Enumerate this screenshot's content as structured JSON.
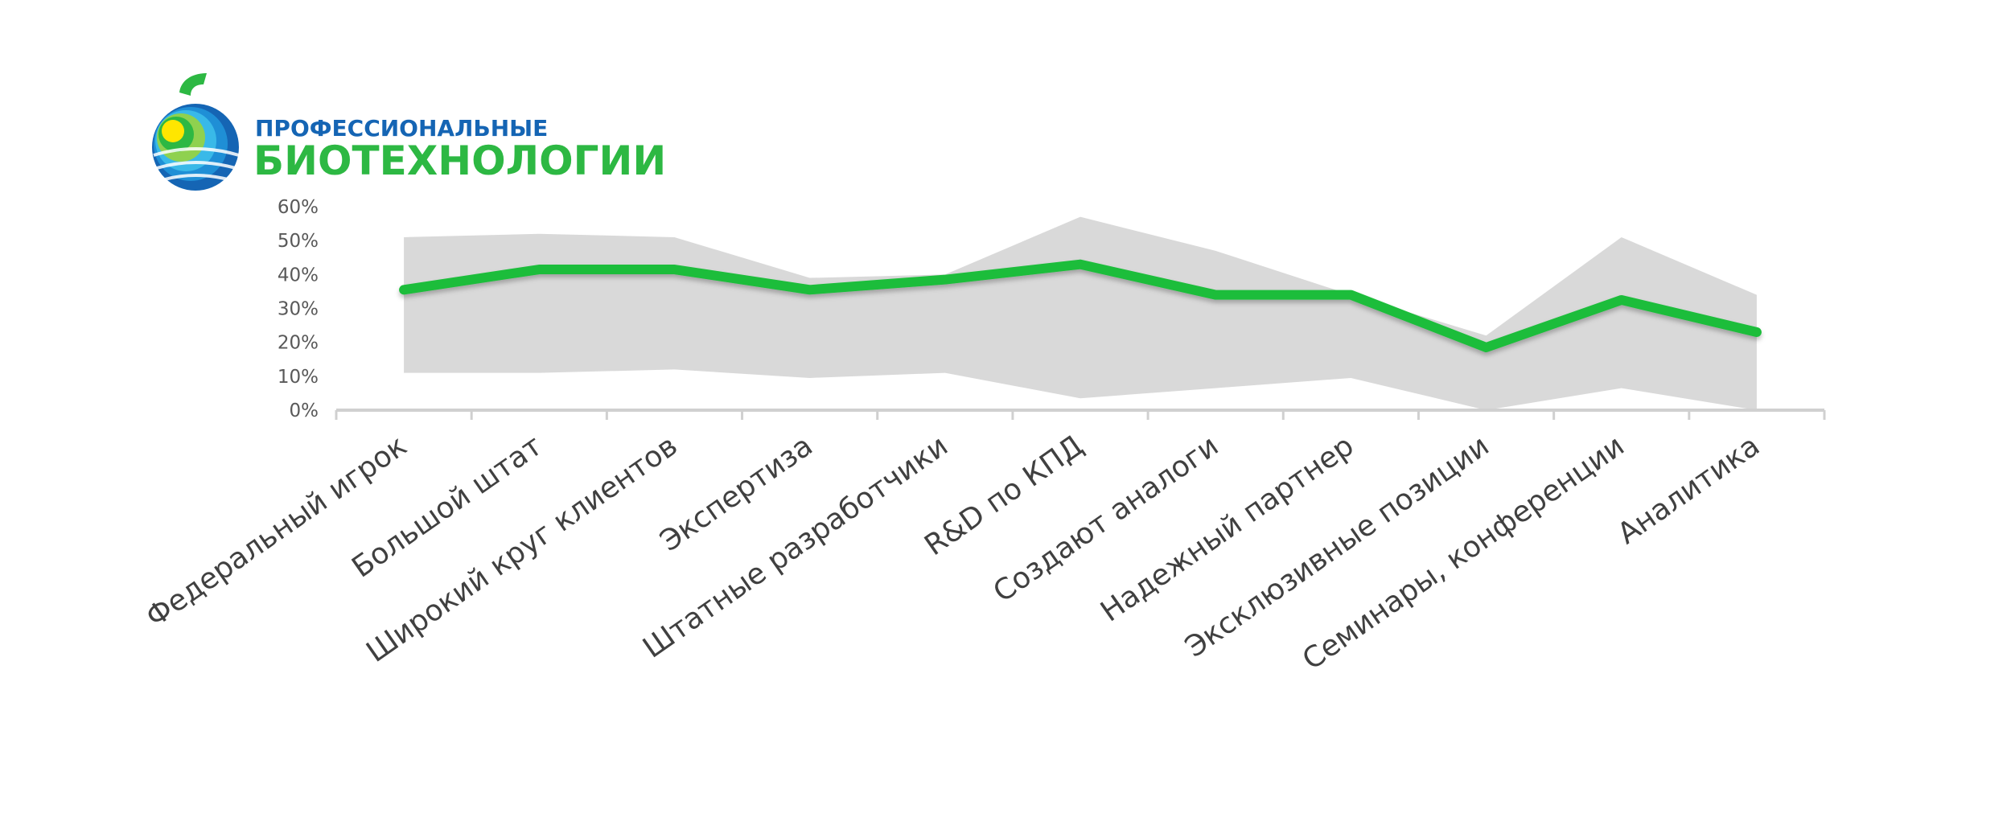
{
  "logo": {
    "line1": "ПРОФЕССИОНАЛЬНЫЕ",
    "line2": "БИОТЕХНОЛОГИИ",
    "color_line1": "#1565b4",
    "color_line2": "#2db843"
  },
  "chart_data": {
    "type": "line",
    "title": "",
    "xlabel": "",
    "ylabel": "",
    "ylim": [
      0,
      0.6
    ],
    "yticks": [
      0,
      0.1,
      0.2,
      0.3,
      0.4,
      0.5,
      0.6
    ],
    "ytick_labels": [
      "0%",
      "10%",
      "20%",
      "30%",
      "40%",
      "50%",
      "60%"
    ],
    "categories": [
      "Федеральный игрок",
      "Большой штат",
      "Широкий круг клиентов",
      "Экспертиза",
      "Штатные разработчики",
      "R&D по КПД",
      "Создают аналоги",
      "Надежный партнер",
      "Эксклюзивные позиции",
      "Семинары, конференции",
      "Аналитика"
    ],
    "series": [
      {
        "name": "",
        "kind": "band-min",
        "values": [
          0.11,
          0.11,
          0.12,
          0.095,
          0.11,
          0.035,
          0.065,
          0.095,
          0.0,
          0.065,
          0.0
        ]
      },
      {
        "name": "",
        "kind": "band-max",
        "values": [
          0.51,
          0.52,
          0.51,
          0.39,
          0.4,
          0.57,
          0.47,
          0.34,
          0.22,
          0.51,
          0.34
        ]
      },
      {
        "name": "",
        "kind": "line",
        "values": [
          0.355,
          0.415,
          0.415,
          0.355,
          0.385,
          0.43,
          0.34,
          0.34,
          0.185,
          0.325,
          0.23
        ]
      }
    ],
    "colors": {
      "band": "#d9d9d9",
      "line": "#1dbd3a",
      "axis": "#d0d0d0"
    },
    "grid": false,
    "legend": "none"
  }
}
